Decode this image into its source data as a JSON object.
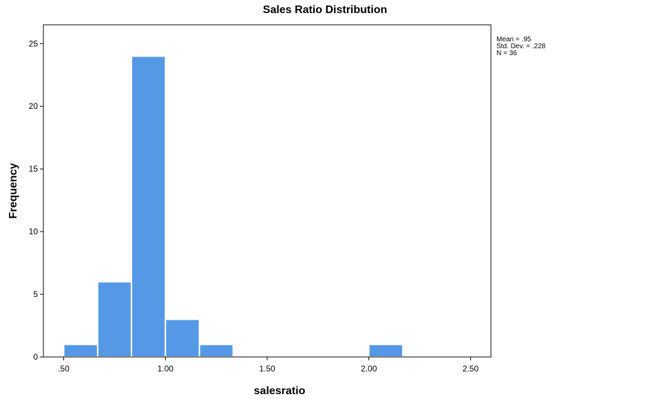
{
  "chart_data": {
    "type": "bar",
    "title": "Sales Ratio Distribution",
    "xlabel": "salesratio",
    "ylabel": "Frequency",
    "xlim": [
      0.4,
      2.6
    ],
    "ylim": [
      0,
      26.5
    ],
    "x_ticks": [
      ".50",
      "1.00",
      "1.50",
      "2.00",
      "2.50"
    ],
    "y_ticks": [
      "0",
      "5",
      "10",
      "15",
      "20",
      "25"
    ],
    "bin_width": 0.167,
    "bins": [
      {
        "x0": 0.5,
        "x1": 0.667,
        "count": 1
      },
      {
        "x0": 0.667,
        "x1": 0.833,
        "count": 6
      },
      {
        "x0": 0.833,
        "x1": 1.0,
        "count": 24
      },
      {
        "x0": 1.0,
        "x1": 1.167,
        "count": 3
      },
      {
        "x0": 1.167,
        "x1": 1.333,
        "count": 1
      },
      {
        "x0": 1.333,
        "x1": 1.5,
        "count": 0
      },
      {
        "x0": 1.5,
        "x1": 1.667,
        "count": 0
      },
      {
        "x0": 1.667,
        "x1": 1.833,
        "count": 0
      },
      {
        "x0": 1.833,
        "x1": 2.0,
        "count": 0
      },
      {
        "x0": 2.0,
        "x1": 2.167,
        "count": 1
      }
    ],
    "bar_color": "#5599e6",
    "grid": false,
    "stats": {
      "mean": "Mean = .95",
      "std_dev": "Std. Dev. = .228",
      "n": "N = 36"
    }
  }
}
